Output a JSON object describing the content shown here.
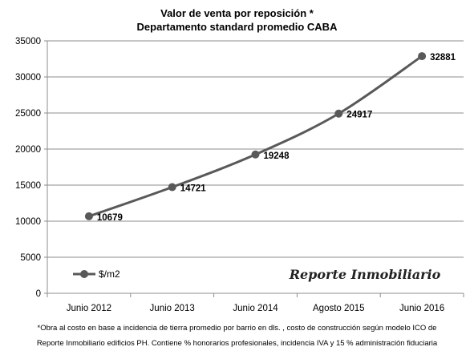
{
  "chart_data": {
    "type": "line",
    "title": "Valor de venta por reposición *",
    "subtitle": "Departamento standard promedio CABA",
    "categories": [
      "Junio 2012",
      "Junio 2013",
      "Junio 2014",
      "Agosto 2015",
      "Junio 2016"
    ],
    "series": [
      {
        "name": "$/m2",
        "values": [
          10679,
          14721,
          19248,
          24917,
          32881
        ],
        "color": "#595959"
      }
    ],
    "ylim": [
      0,
      35000
    ],
    "yticks": [
      0,
      5000,
      10000,
      15000,
      20000,
      25000,
      30000,
      35000
    ],
    "grid": true,
    "legend": "bottom-left",
    "data_labels": true
  },
  "watermark": "Reporte Inmobiliario",
  "footnote": {
    "line1": "*Obra al costo en base a incidencia de tierra promedio por barrio en dls. , costo de construcción según modelo ICO de",
    "line2": "Reporte Inmobiliario edificios PH. Contiene % honorarios profesionales, incidencia IVA y 15 % administración fiduciaria"
  }
}
